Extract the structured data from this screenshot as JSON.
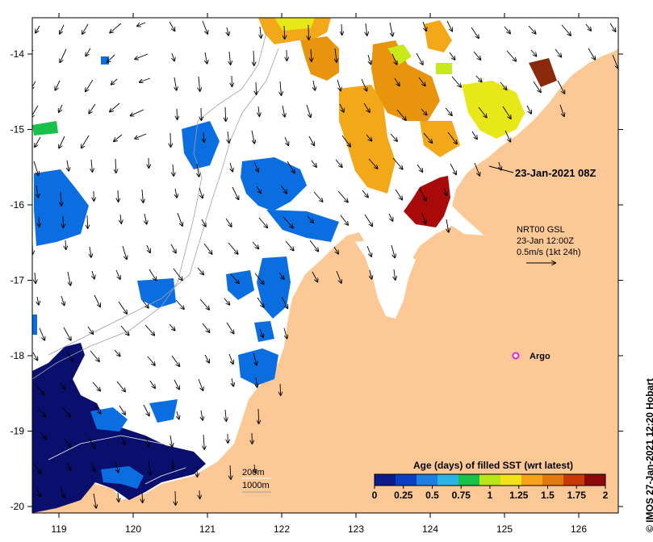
{
  "map": {
    "timestamp_label": "23-Jan-2021 08Z",
    "vector_info": {
      "line1": "NRT00 GSL",
      "line2": "23-Jan 12:00Z",
      "line3": "0.5m/s (1kt 24h)"
    },
    "argo_label": "Argo",
    "depth_legend": {
      "contour1": "200m",
      "contour2": "1000m"
    },
    "colorbar": {
      "title": "Age (days) of filled SST (wrt latest)",
      "ticks": [
        "0",
        "0.25",
        "0.5",
        "0.75",
        "1",
        "1.25",
        "1.5",
        "1.75",
        "2"
      ],
      "colors": [
        "#0b1b8a",
        "#0a3fc4",
        "#1f7fe0",
        "#2bb3e6",
        "#19c04a",
        "#b8e61a",
        "#f2e21a",
        "#f4a21c",
        "#e07a10",
        "#c63a0a",
        "#8a0a0a"
      ]
    },
    "credit": "© IMOS 27-Jan-2021 12:20 Hobart",
    "lon_ticks": [
      "119",
      "120",
      "121",
      "122",
      "123",
      "124",
      "125",
      "126"
    ],
    "lat_ticks": [
      "-14",
      "-15",
      "-16",
      "-17",
      "-18",
      "-19",
      "-20"
    ],
    "colors": {
      "land": "#fcc896",
      "ocean": "#ffffff",
      "sst_blue": "#0a6ee0",
      "sst_navy": "#0a0f6e",
      "sst_orange": "#e8940c",
      "sst_gold": "#f2a818",
      "sst_yellow": "#e8e818",
      "sst_red": "#a80a0a",
      "argo": "#e020e0"
    }
  }
}
